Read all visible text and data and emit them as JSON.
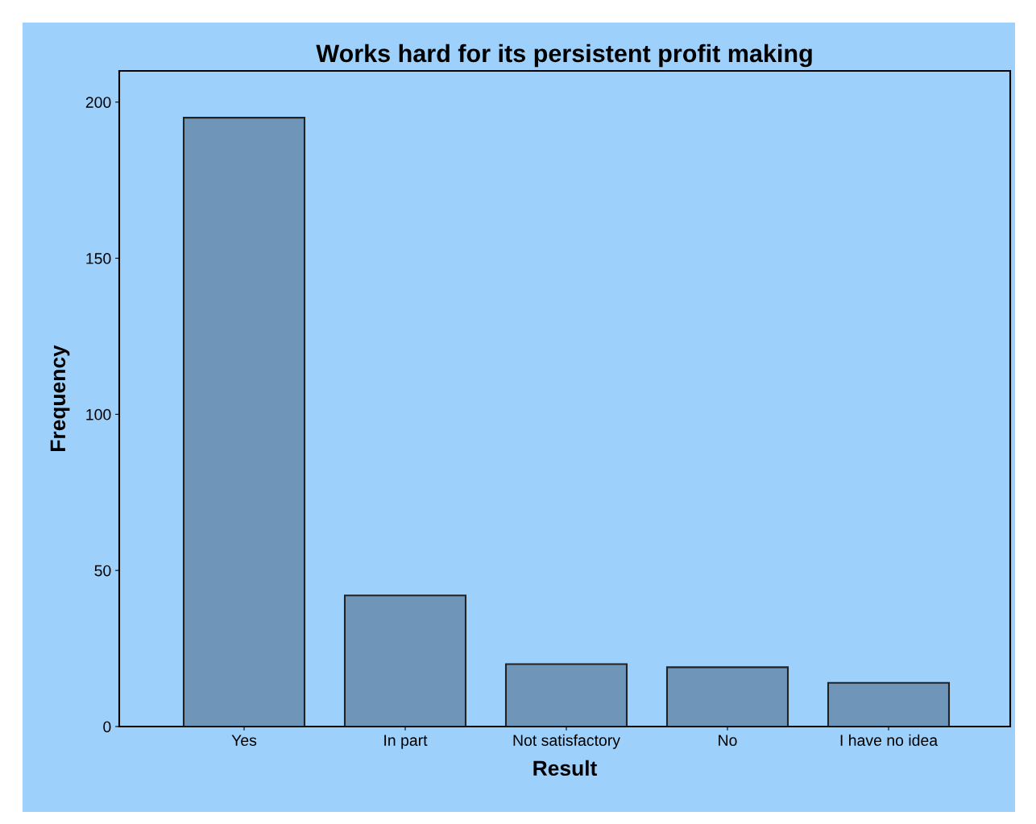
{
  "chart_data": {
    "type": "bar",
    "title": "Works hard for its persistent profit making",
    "xlabel": "Result",
    "ylabel": "Frequency",
    "categories": [
      "Yes",
      "In part",
      "Not satisfactory",
      "No",
      "I have no idea"
    ],
    "values": [
      195,
      42,
      20,
      19,
      14
    ],
    "color": "#6f95b8",
    "ylim": [
      0,
      210
    ],
    "yticks": [
      0,
      50,
      100,
      150,
      200
    ],
    "grid": false,
    "legend": false
  }
}
